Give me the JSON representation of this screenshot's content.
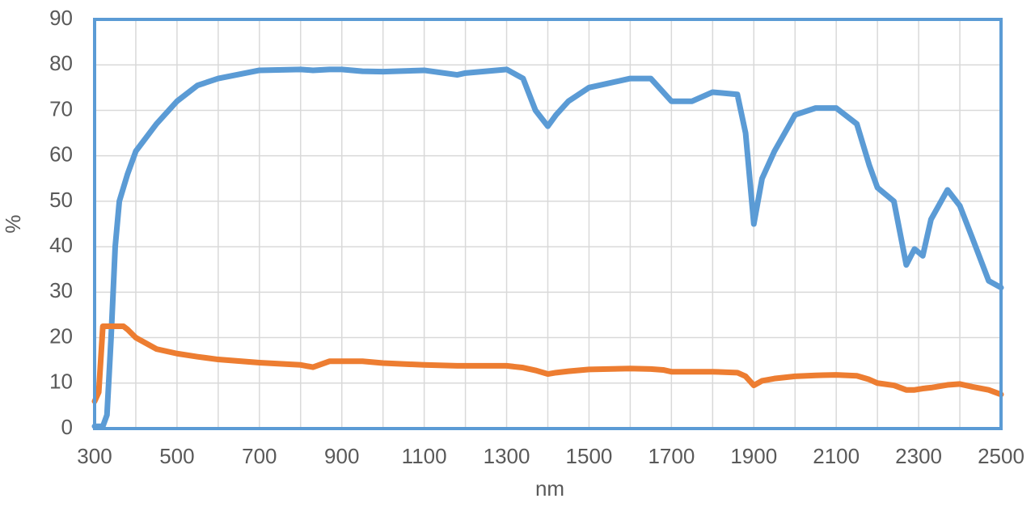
{
  "chart_data": {
    "type": "line",
    "x": [
      300,
      310,
      320,
      330,
      340,
      350,
      360,
      370,
      380,
      400,
      450,
      500,
      550,
      600,
      700,
      800,
      830,
      870,
      900,
      950,
      1000,
      1100,
      1180,
      1200,
      1300,
      1340,
      1370,
      1400,
      1420,
      1450,
      1500,
      1600,
      1650,
      1680,
      1700,
      1750,
      1800,
      1860,
      1880,
      1900,
      1920,
      1950,
      2000,
      2050,
      2100,
      2150,
      2180,
      2200,
      2240,
      2270,
      2290,
      2310,
      2330,
      2370,
      2400,
      2430,
      2470,
      2500
    ],
    "series": [
      {
        "color": "#5b9bd5",
        "values": [
          0.5,
          0.5,
          0.5,
          3,
          20,
          40,
          50,
          53,
          56,
          61,
          67,
          72,
          75.5,
          77,
          78.8,
          79,
          78.8,
          79,
          79,
          78.6,
          78.5,
          78.8,
          77.8,
          78.2,
          79,
          77,
          70,
          66.5,
          69,
          72,
          75,
          77,
          77,
          74,
          72,
          72,
          74,
          73.5,
          65,
          45,
          55,
          61,
          69,
          70.5,
          70.5,
          67,
          58,
          53,
          50,
          36,
          39.5,
          38,
          46,
          52.5,
          49,
          42,
          32.5,
          31
        ]
      },
      {
        "color": "#ed7d31",
        "values": [
          6,
          8,
          22.5,
          22.5,
          22.5,
          22.5,
          22.5,
          22.5,
          21.8,
          20,
          17.5,
          16.5,
          15.8,
          15.2,
          14.5,
          14,
          13.5,
          14.8,
          14.8,
          14.8,
          14.4,
          14,
          13.8,
          13.8,
          13.8,
          13.4,
          12.8,
          12,
          12.3,
          12.6,
          13,
          13.2,
          13.1,
          12.9,
          12.5,
          12.5,
          12.5,
          12.3,
          11.5,
          9.5,
          10.5,
          11,
          11.5,
          11.7,
          11.8,
          11.6,
          10.8,
          10,
          9.5,
          8.5,
          8.5,
          8.8,
          9,
          9.6,
          9.8,
          9.2,
          8.5,
          7.5
        ]
      }
    ],
    "xlim": [
      300,
      2500
    ],
    "xticks": [
      300,
      500,
      700,
      900,
      1100,
      1300,
      1500,
      1700,
      1900,
      2100,
      2300,
      2500
    ],
    "xgrid": [
      300,
      400,
      500,
      600,
      700,
      800,
      900,
      1000,
      1100,
      1200,
      1300,
      1400,
      1500,
      1600,
      1700,
      1800,
      1900,
      2000,
      2100,
      2200,
      2300,
      2400,
      2500
    ],
    "ylim": [
      0,
      90
    ],
    "yticks": [
      0,
      10,
      20,
      30,
      40,
      50,
      60,
      70,
      80,
      90
    ],
    "xlabel": "nm",
    "ylabel": "%",
    "grid": true,
    "frame_color": "#5b9bd5"
  }
}
